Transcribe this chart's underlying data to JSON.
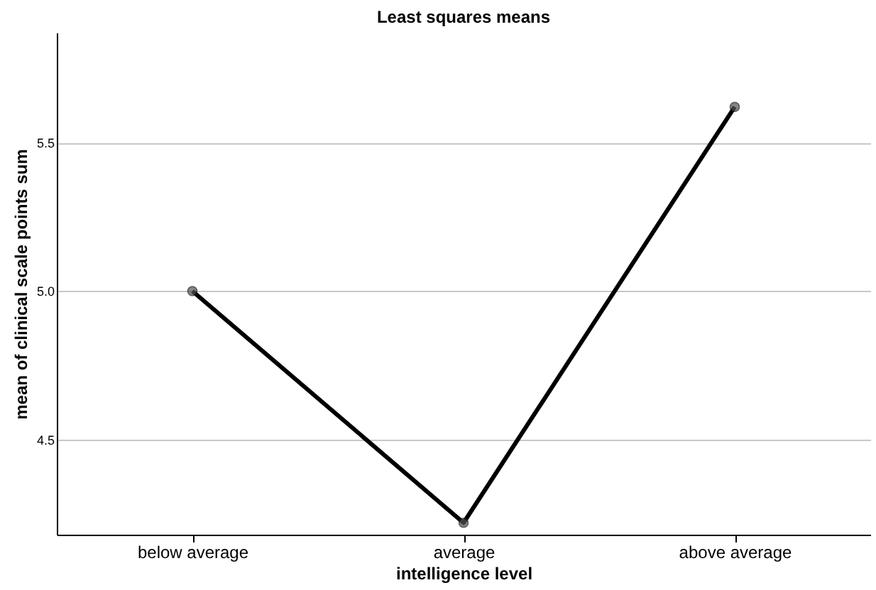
{
  "chart_data": {
    "type": "line",
    "title": "Least squares means",
    "xlabel": "intelligence level",
    "ylabel": "mean of clinical scale points sum",
    "categories": [
      "below average",
      "average",
      "above average"
    ],
    "series": [
      {
        "color": "#000000",
        "values": [
          5.0,
          4.22,
          5.62
        ]
      }
    ],
    "ylim": [
      4.18,
      5.87
    ],
    "yticks": [
      {
        "value": 4.5,
        "label": "4.5"
      },
      {
        "value": 5.0,
        "label": "5.0"
      },
      {
        "value": 5.5,
        "label": "5.5"
      }
    ],
    "grid": "y",
    "marker": "circle",
    "line_style": "solid"
  }
}
